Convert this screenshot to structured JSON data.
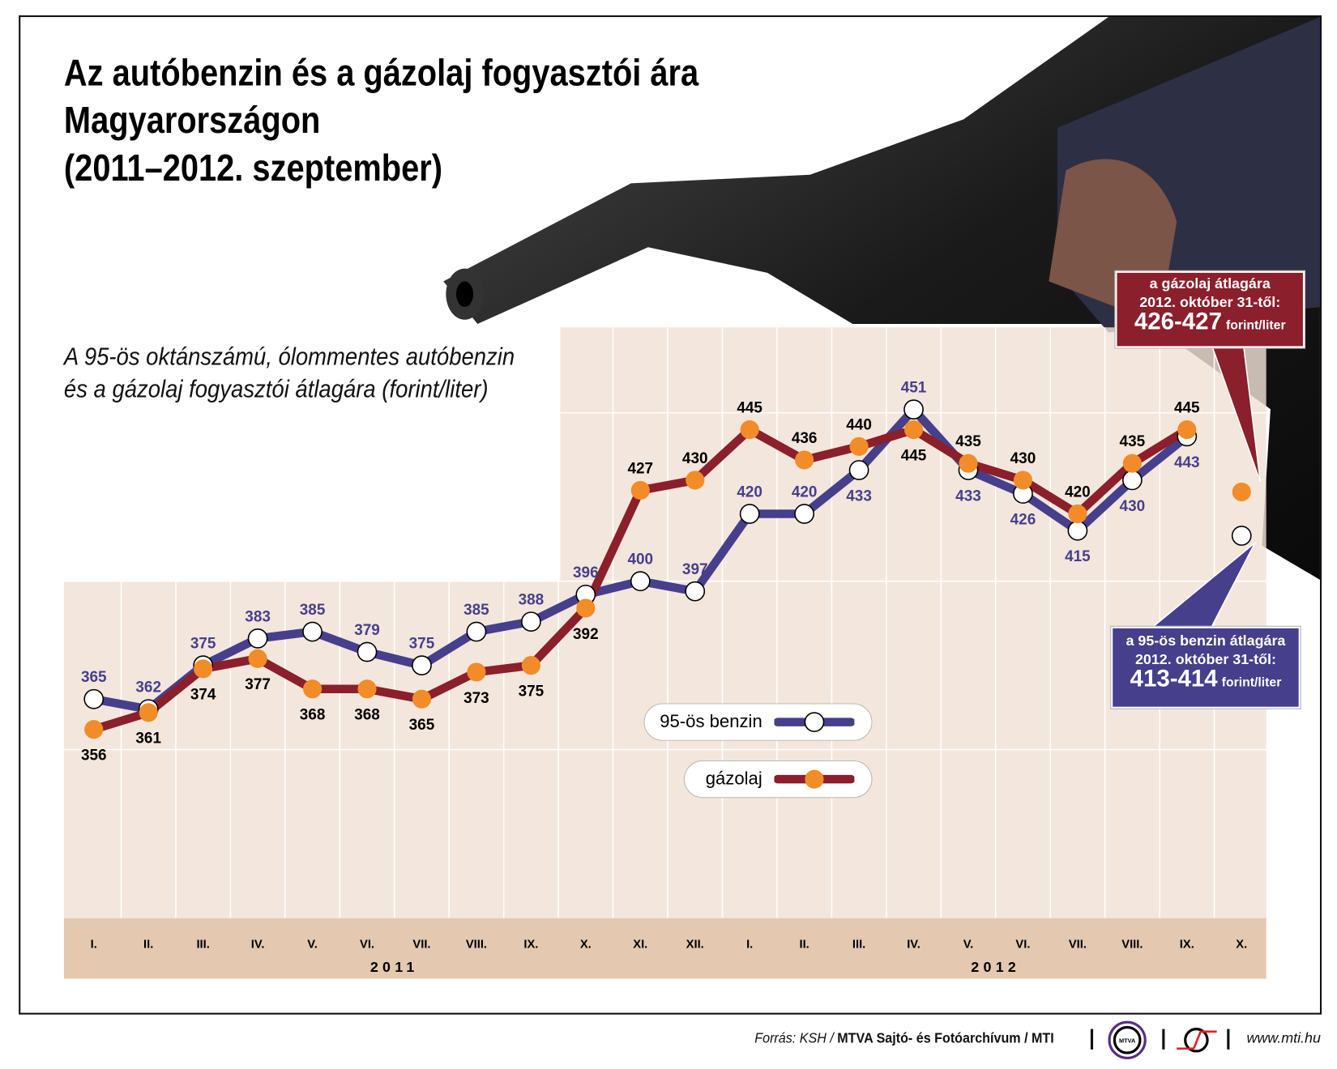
{
  "title_lines": [
    "Az autóbenzin és a gázolaj fogyasztói ára",
    "Magyarországon",
    "(2011–2012. szeptember)"
  ],
  "subtitle_lines": [
    "A 95-ös oktánszámú, ólommentes autóbenzin",
    "és a gázolaj fogyasztói átlagára (forint/liter)"
  ],
  "chart_data": {
    "type": "line",
    "categories": [
      "I.",
      "II.",
      "III.",
      "IV.",
      "V.",
      "VI.",
      "VII.",
      "VIII.",
      "IX.",
      "X.",
      "XI.",
      "XII.",
      "I.",
      "II.",
      "III.",
      "IV.",
      "V.",
      "VI.",
      "VII.",
      "VIII.",
      "IX.",
      "X."
    ],
    "year_labels": [
      {
        "label": "2011",
        "from": 0,
        "to": 11
      },
      {
        "label": "2012",
        "from": 12,
        "to": 21
      }
    ],
    "series": [
      {
        "name": "95-ös benzin",
        "color": "#463f8c",
        "marker": "#ffffff",
        "values": [
          365,
          362,
          375,
          383,
          385,
          379,
          375,
          385,
          388,
          396,
          400,
          397,
          420,
          420,
          433,
          451,
          433,
          426,
          415,
          430,
          443,
          null
        ],
        "projected": 413.5
      },
      {
        "name": "gázolaj",
        "color": "#8b1f2b",
        "marker": "#f28c28",
        "values": [
          356,
          361,
          374,
          377,
          368,
          368,
          365,
          373,
          375,
          392,
          427,
          430,
          445,
          436,
          440,
          445,
          435,
          430,
          420,
          435,
          445,
          null
        ],
        "projected": 426.5
      }
    ],
    "ylim": [
      300,
      475
    ],
    "grid": true,
    "legend_placement": "bottom-center"
  },
  "callouts": {
    "diesel": {
      "line1": "a gázolaj átlagára",
      "line2": "2012. október 31-től:",
      "value": "426-427",
      "unit": "forint/liter",
      "color": "#8b1f2b"
    },
    "petrol": {
      "line1": "a 95-ös benzin átlagára",
      "line2": "2012. október 31-től:",
      "value": "413-414",
      "unit": "forint/liter",
      "color": "#463f8c"
    }
  },
  "footer": {
    "source_prefix": "Forrás: KSH / ",
    "source_bold": "MTVA Sajtó- és Fotóarchívum / MTI",
    "mtva_logo": "MTVA",
    "url": "www.mti.hu"
  }
}
